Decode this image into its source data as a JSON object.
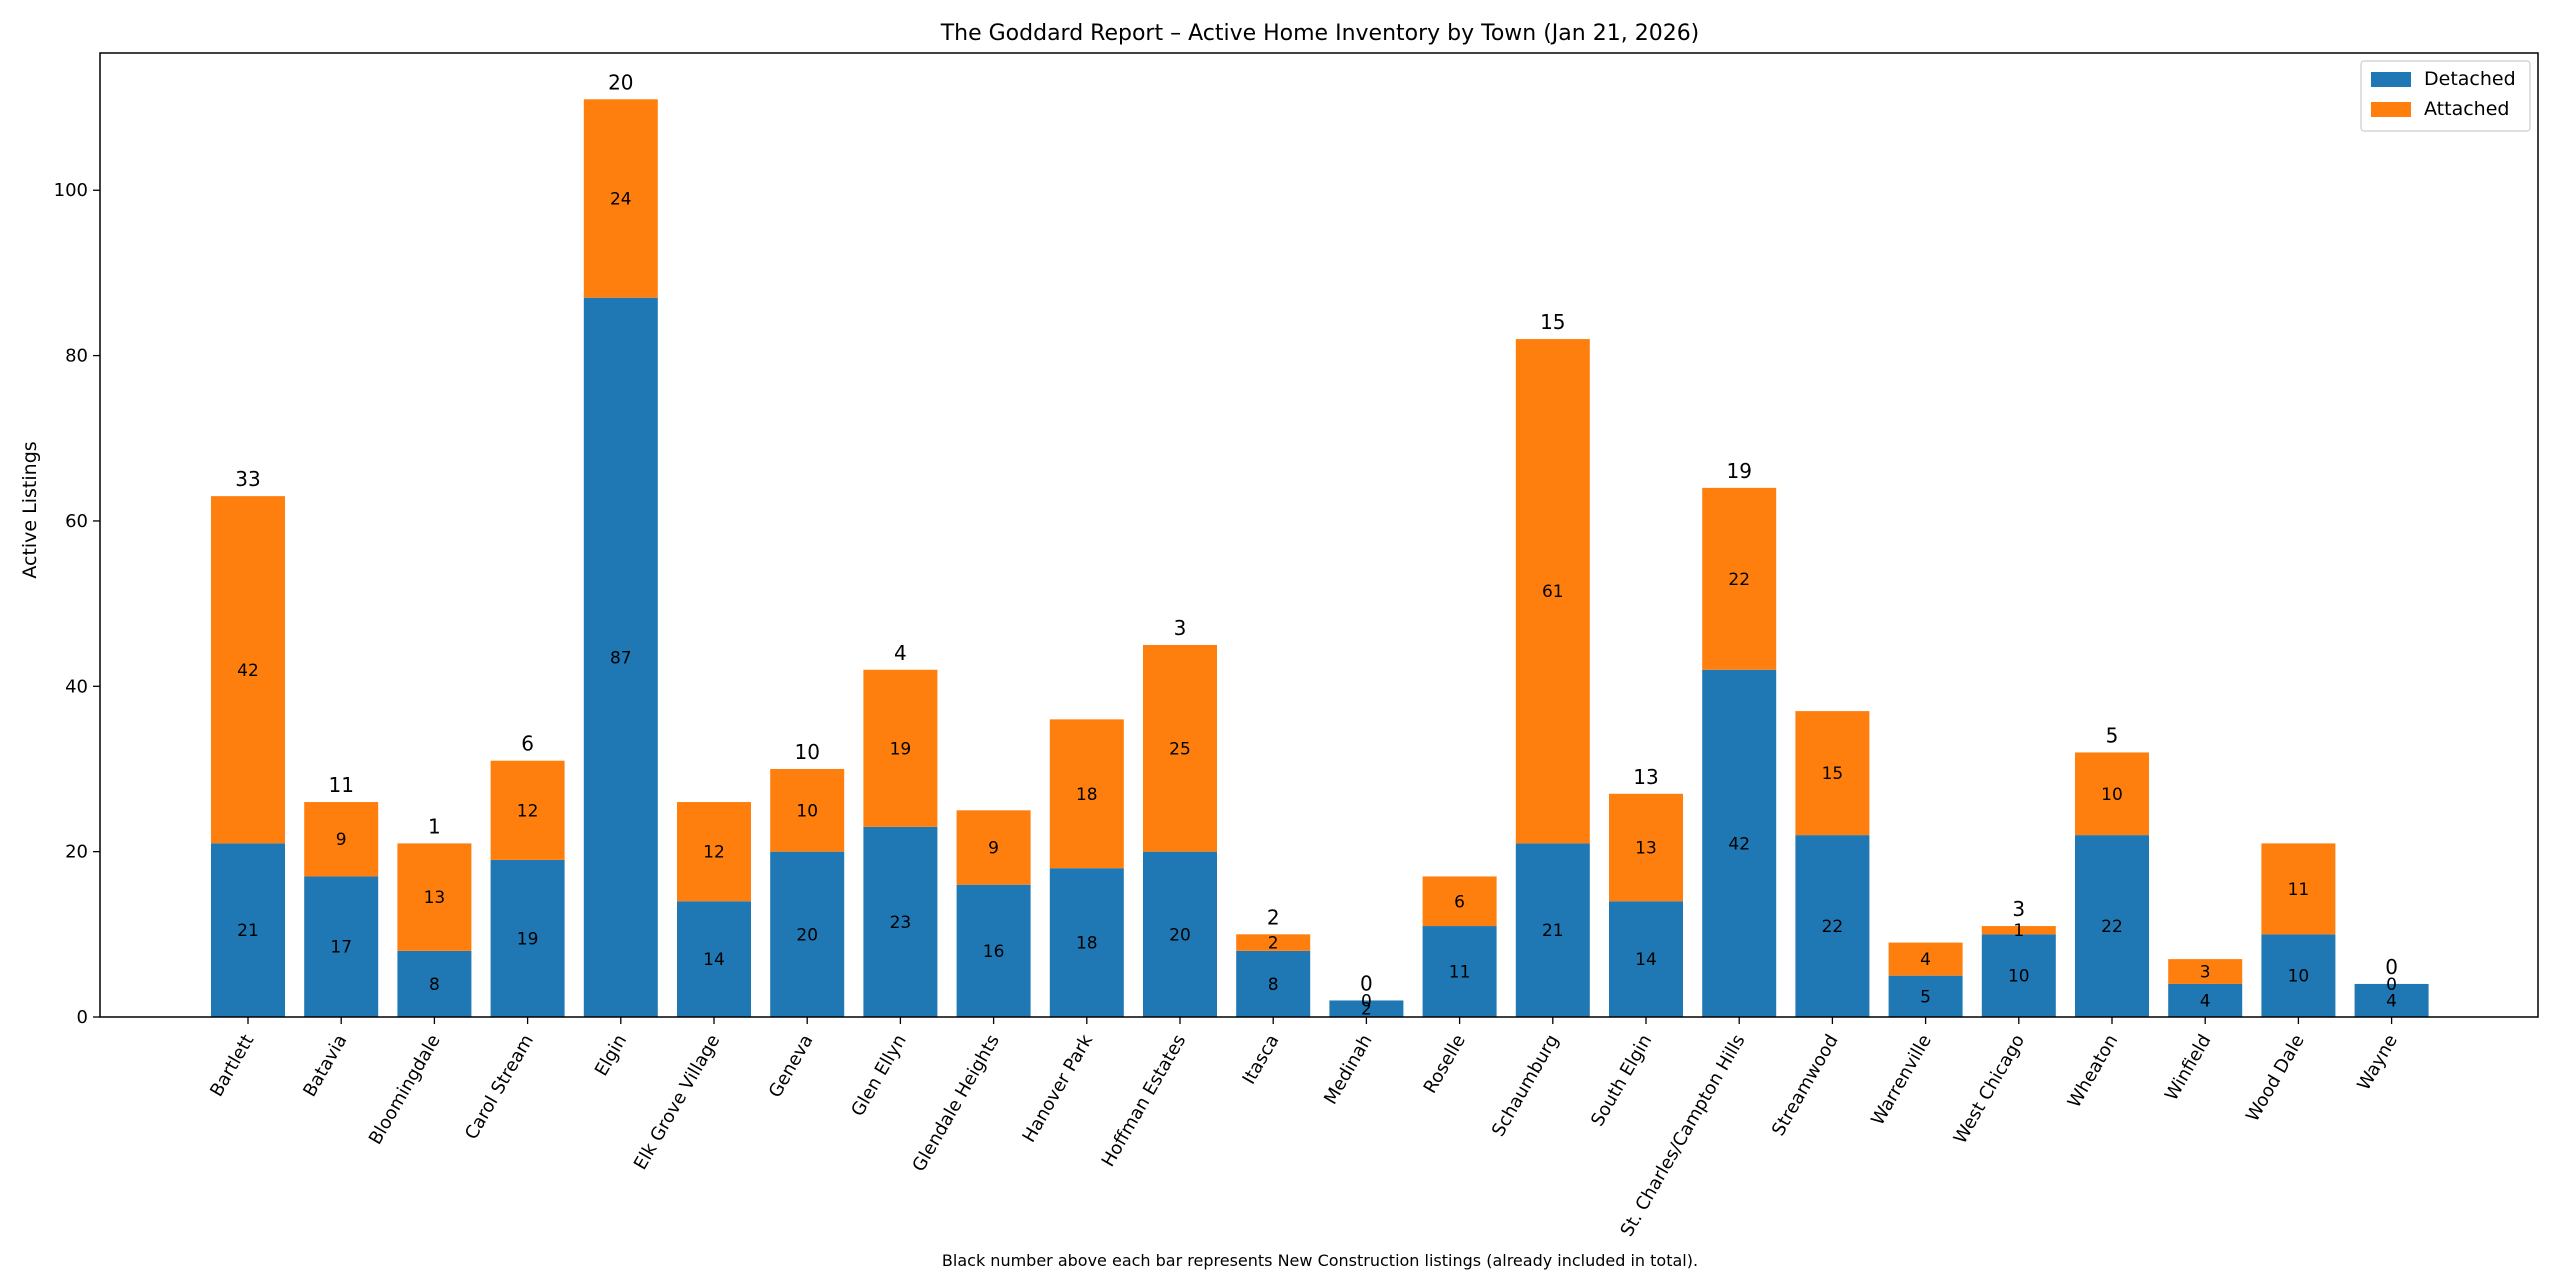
{
  "chart_data": {
    "type": "bar",
    "stacked": true,
    "title": "The Goddard Report – Active Home Inventory by Town (Jan 21, 2026)",
    "xlabel": "",
    "ylabel": "Active Listings",
    "ylim": [
      0,
      116.6
    ],
    "yticks": [
      0,
      20,
      40,
      60,
      80,
      100
    ],
    "grid": false,
    "legend_position": "top-right",
    "categories": [
      "Bartlett",
      "Batavia",
      "Bloomingdale",
      "Carol Stream",
      "Elgin",
      "Elk Grove Village",
      "Geneva",
      "Glen Ellyn",
      "Glendale Heights",
      "Hanover Park",
      "Hoffman Estates",
      "Itasca",
      "Medinah",
      "Roselle",
      "Schaumburg",
      "South Elgin",
      "St. Charles/Campton Hills",
      "Streamwood",
      "Warrenville",
      "West Chicago",
      "Wheaton",
      "Winfield",
      "Wood Dale",
      "Wayne"
    ],
    "series": [
      {
        "name": "Detached",
        "color": "#1f77b4",
        "values": [
          21,
          17,
          8,
          19,
          87,
          14,
          20,
          23,
          16,
          18,
          20,
          8,
          2,
          11,
          21,
          14,
          42,
          22,
          5,
          10,
          22,
          4,
          10,
          4
        ]
      },
      {
        "name": "Attached",
        "color": "#ff7f0e",
        "values": [
          42,
          9,
          13,
          12,
          24,
          12,
          10,
          19,
          9,
          18,
          25,
          2,
          0,
          6,
          61,
          13,
          22,
          15,
          4,
          1,
          10,
          3,
          11,
          0
        ]
      }
    ],
    "new_construction": [
      33,
      11,
      1,
      6,
      20,
      null,
      10,
      4,
      null,
      null,
      3,
      2,
      0,
      null,
      15,
      13,
      19,
      null,
      null,
      3,
      5,
      null,
      null,
      0
    ],
    "footnote": "Black number above each bar represents New Construction listings (already included in total)."
  }
}
